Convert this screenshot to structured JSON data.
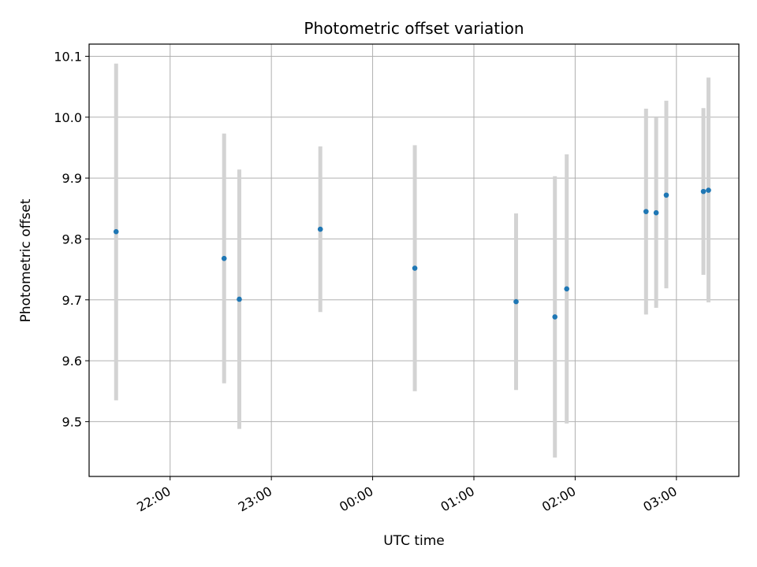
{
  "chart_data": {
    "type": "scatter",
    "title": "Photometric offset variation",
    "xlabel": "UTC time",
    "ylabel": "Photometric offset",
    "x_axis": "time",
    "x_ticks": [
      "22:00",
      "23:00",
      "00:00",
      "01:00",
      "02:00",
      "03:00"
    ],
    "y_ticks": [
      "9.5",
      "9.6",
      "9.7",
      "9.8",
      "9.9",
      "10.0",
      "10.1"
    ],
    "xlim": [
      "21:12",
      "03:37"
    ],
    "ylim": [
      9.41,
      10.12
    ],
    "grid": true,
    "colors": {
      "points": "#1f77b4",
      "error_bars": "#d3d3d3",
      "grid": "#b0b0b0"
    },
    "points": [
      {
        "x": "21:28",
        "y": 9.812,
        "y_low": 9.535,
        "y_high": 10.088
      },
      {
        "x": "22:32",
        "y": 9.768,
        "y_low": 9.563,
        "y_high": 9.973
      },
      {
        "x": "22:41",
        "y": 9.701,
        "y_low": 9.488,
        "y_high": 9.914
      },
      {
        "x": "23:29",
        "y": 9.816,
        "y_low": 9.68,
        "y_high": 9.952
      },
      {
        "x": "00:25",
        "y": 9.752,
        "y_low": 9.55,
        "y_high": 9.954
      },
      {
        "x": "01:25",
        "y": 9.697,
        "y_low": 9.552,
        "y_high": 9.842
      },
      {
        "x": "01:48",
        "y": 9.672,
        "y_low": 9.441,
        "y_high": 9.903
      },
      {
        "x": "01:55",
        "y": 9.718,
        "y_low": 9.497,
        "y_high": 9.939
      },
      {
        "x": "02:42",
        "y": 9.845,
        "y_low": 9.676,
        "y_high": 10.014
      },
      {
        "x": "02:48",
        "y": 9.843,
        "y_low": 9.687,
        "y_high": 9.999
      },
      {
        "x": "02:54",
        "y": 9.872,
        "y_low": 9.719,
        "y_high": 10.027
      },
      {
        "x": "03:16",
        "y": 9.878,
        "y_low": 9.741,
        "y_high": 10.015
      },
      {
        "x": "03:19",
        "y": 9.88,
        "y_low": 9.696,
        "y_high": 10.065
      }
    ]
  }
}
